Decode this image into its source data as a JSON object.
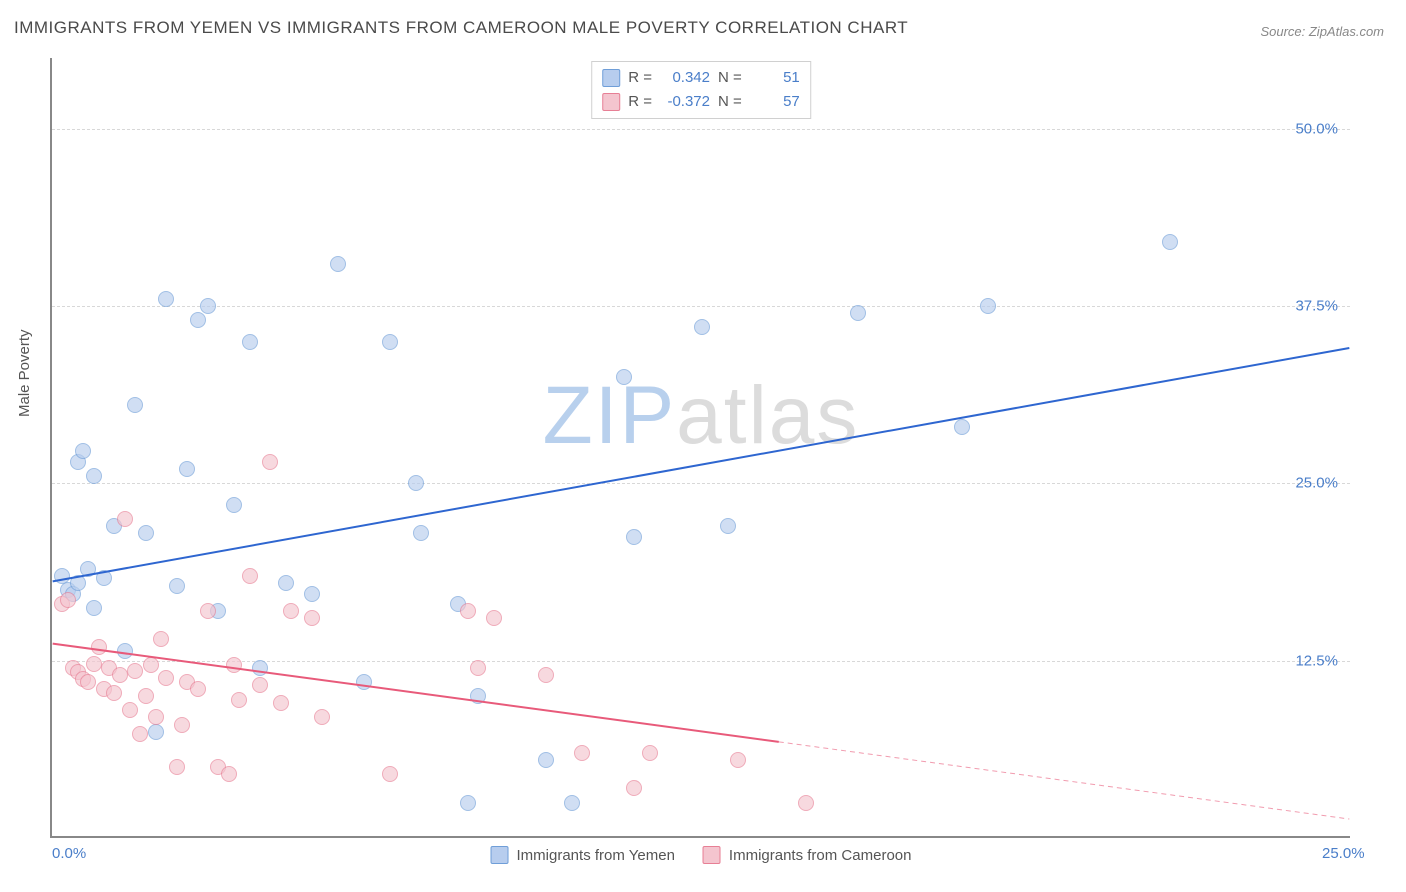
{
  "title": "IMMIGRANTS FROM YEMEN VS IMMIGRANTS FROM CAMEROON MALE POVERTY CORRELATION CHART",
  "source_label": "Source: ZipAtlas.com",
  "watermark": {
    "part1": "ZIP",
    "part2": "atlas"
  },
  "chart": {
    "type": "scatter",
    "xlabel": "",
    "ylabel": "Male Poverty",
    "xlim": [
      0,
      25
    ],
    "ylim": [
      0,
      55
    ],
    "xticks": [
      {
        "v": 0,
        "l": "0.0%"
      },
      {
        "v": 25,
        "l": "25.0%"
      }
    ],
    "yticks": [
      {
        "v": 12.5,
        "l": "12.5%"
      },
      {
        "v": 25,
        "l": "25.0%"
      },
      {
        "v": 37.5,
        "l": "37.5%"
      },
      {
        "v": 50,
        "l": "50.0%"
      }
    ],
    "grid_color": "#d8d8d8",
    "background_color": "#ffffff",
    "axis_color": "#888888",
    "tick_font_color": "#4a7ec9",
    "label_font_color": "#555555",
    "tick_fontsize": 15,
    "marker_radius": 8,
    "marker_opacity": 0.65,
    "marker_border_opacity": 0.9,
    "series": [
      {
        "name": "Immigrants from Yemen",
        "color_fill": "#b7cdee",
        "color_stroke": "#6f9ed8",
        "R": "0.342",
        "N": "51",
        "regression": {
          "x1": 0,
          "y1": 18.0,
          "x2": 25,
          "y2": 34.5,
          "color": "#2e66d0",
          "width": 2,
          "dash_from_x": null
        },
        "points": [
          [
            0.2,
            18.5
          ],
          [
            0.3,
            17.5
          ],
          [
            0.4,
            17.2
          ],
          [
            0.5,
            18.0
          ],
          [
            0.5,
            26.5
          ],
          [
            0.6,
            27.3
          ],
          [
            0.7,
            19.0
          ],
          [
            0.8,
            16.2
          ],
          [
            0.8,
            25.5
          ],
          [
            1.0,
            18.3
          ],
          [
            1.2,
            22.0
          ],
          [
            1.4,
            13.2
          ],
          [
            1.6,
            30.5
          ],
          [
            1.8,
            21.5
          ],
          [
            2.0,
            7.5
          ],
          [
            2.2,
            38.0
          ],
          [
            2.4,
            17.8
          ],
          [
            2.6,
            26.0
          ],
          [
            2.8,
            36.5
          ],
          [
            3.0,
            37.5
          ],
          [
            3.2,
            16.0
          ],
          [
            3.5,
            23.5
          ],
          [
            3.8,
            35.0
          ],
          [
            4.0,
            12.0
          ],
          [
            4.5,
            18.0
          ],
          [
            5.0,
            17.2
          ],
          [
            5.5,
            40.5
          ],
          [
            6.0,
            11.0
          ],
          [
            6.5,
            35.0
          ],
          [
            7.0,
            25.0
          ],
          [
            7.1,
            21.5
          ],
          [
            7.8,
            16.5
          ],
          [
            8.0,
            2.5
          ],
          [
            8.2,
            10.0
          ],
          [
            9.5,
            5.5
          ],
          [
            10.0,
            2.5
          ],
          [
            11.0,
            32.5
          ],
          [
            11.2,
            21.2
          ],
          [
            12.5,
            36.0
          ],
          [
            13.0,
            22.0
          ],
          [
            15.5,
            37.0
          ],
          [
            17.5,
            29.0
          ],
          [
            18.0,
            37.5
          ],
          [
            21.5,
            42.0
          ]
        ]
      },
      {
        "name": "Immigrants from Cameroon",
        "color_fill": "#f4c5cf",
        "color_stroke": "#e77f95",
        "R": "-0.372",
        "N": "57",
        "regression": {
          "x1": 0,
          "y1": 13.6,
          "x2": 25,
          "y2": 1.2,
          "color": "#e85a7a",
          "width": 2,
          "dash_from_x": 14
        },
        "points": [
          [
            0.2,
            16.5
          ],
          [
            0.3,
            16.8
          ],
          [
            0.4,
            12.0
          ],
          [
            0.5,
            11.7
          ],
          [
            0.6,
            11.2
          ],
          [
            0.7,
            11.0
          ],
          [
            0.8,
            12.3
          ],
          [
            0.9,
            13.5
          ],
          [
            1.0,
            10.5
          ],
          [
            1.1,
            12.0
          ],
          [
            1.2,
            10.2
          ],
          [
            1.3,
            11.5
          ],
          [
            1.4,
            22.5
          ],
          [
            1.5,
            9.0
          ],
          [
            1.6,
            11.8
          ],
          [
            1.7,
            7.3
          ],
          [
            1.8,
            10.0
          ],
          [
            1.9,
            12.2
          ],
          [
            2.0,
            8.5
          ],
          [
            2.1,
            14.0
          ],
          [
            2.2,
            11.3
          ],
          [
            2.4,
            5.0
          ],
          [
            2.5,
            8.0
          ],
          [
            2.6,
            11.0
          ],
          [
            2.8,
            10.5
          ],
          [
            3.0,
            16.0
          ],
          [
            3.2,
            5.0
          ],
          [
            3.4,
            4.5
          ],
          [
            3.5,
            12.2
          ],
          [
            3.6,
            9.7
          ],
          [
            3.8,
            18.5
          ],
          [
            4.0,
            10.8
          ],
          [
            4.2,
            26.5
          ],
          [
            4.4,
            9.5
          ],
          [
            4.6,
            16.0
          ],
          [
            5.0,
            15.5
          ],
          [
            5.2,
            8.5
          ],
          [
            6.5,
            4.5
          ],
          [
            8.0,
            16.0
          ],
          [
            8.2,
            12.0
          ],
          [
            8.5,
            15.5
          ],
          [
            9.5,
            11.5
          ],
          [
            10.2,
            6.0
          ],
          [
            11.2,
            3.5
          ],
          [
            11.5,
            6.0
          ],
          [
            13.2,
            5.5
          ],
          [
            14.5,
            2.5
          ]
        ]
      }
    ]
  },
  "legend_top": {
    "r_label": "R =",
    "n_label": "N ="
  },
  "legend_bottom": {
    "s1": "Immigrants from Yemen",
    "s2": "Immigrants from Cameroon"
  }
}
